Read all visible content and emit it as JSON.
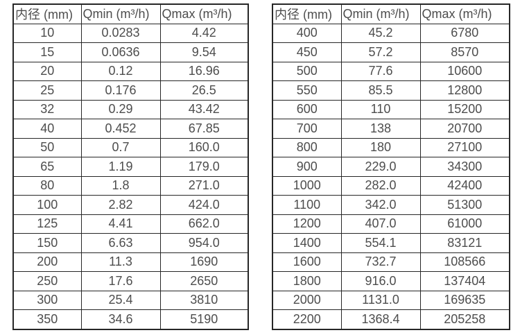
{
  "colors": {
    "background": "#ffffff",
    "border": "#262626",
    "text": "#4d4d4d"
  },
  "tables": [
    {
      "name": "small-diameter-flow-ranges",
      "headers": [
        "内径 (mm)",
        "Qmin (m³/h)",
        "Qmax (m³/h)"
      ],
      "rows": [
        [
          "10",
          "0.0283",
          "4.42"
        ],
        [
          "15",
          "0.0636",
          "9.54"
        ],
        [
          "20",
          "0.12",
          "16.96"
        ],
        [
          "25",
          "0.176",
          "26.5"
        ],
        [
          "32",
          "0.29",
          "43.42"
        ],
        [
          "40",
          "0.452",
          "67.85"
        ],
        [
          "50",
          "0.7",
          "160.0"
        ],
        [
          "65",
          "1.19",
          "179.0"
        ],
        [
          "80",
          "1.8",
          "271.0"
        ],
        [
          "100",
          "2.82",
          "424.0"
        ],
        [
          "125",
          "4.41",
          "662.0"
        ],
        [
          "150",
          "6.63",
          "954.0"
        ],
        [
          "200",
          "11.3",
          "1690"
        ],
        [
          "250",
          "17.6",
          "2650"
        ],
        [
          "300",
          "25.4",
          "3810"
        ],
        [
          "350",
          "34.6",
          "5190"
        ]
      ]
    },
    {
      "name": "large-diameter-flow-ranges",
      "headers": [
        "内径 (mm)",
        "Qmin (m³/h)",
        "Qmax (m³/h)"
      ],
      "rows": [
        [
          "400",
          "45.2",
          "6780"
        ],
        [
          "450",
          "57.2",
          "8570"
        ],
        [
          "500",
          "77.6",
          "10600"
        ],
        [
          "550",
          "85.5",
          "12800"
        ],
        [
          "600",
          "110",
          "15200"
        ],
        [
          "700",
          "138",
          "20700"
        ],
        [
          "800",
          "180",
          "27100"
        ],
        [
          "900",
          "229.0",
          "34300"
        ],
        [
          "1000",
          "282.0",
          "42400"
        ],
        [
          "1100",
          "342.0",
          "51300"
        ],
        [
          "1200",
          "407.0",
          "61000"
        ],
        [
          "1400",
          "554.1",
          "83121"
        ],
        [
          "1600",
          "732.7",
          "108566"
        ],
        [
          "1800",
          "916.0",
          "137404"
        ],
        [
          "2000",
          "1131.0",
          "169635"
        ],
        [
          "2200",
          "1368.4",
          "205258"
        ]
      ]
    }
  ]
}
